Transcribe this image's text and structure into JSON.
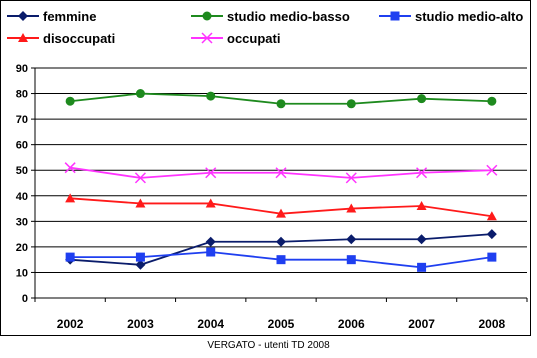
{
  "caption": "VERGATO - utenti TD 2008",
  "chart_data": {
    "type": "line",
    "categories": [
      "2002",
      "2003",
      "2004",
      "2005",
      "2006",
      "2007",
      "2008"
    ],
    "ylim": [
      0,
      90
    ],
    "yticks": [
      0,
      10,
      20,
      30,
      40,
      50,
      60,
      70,
      80,
      90
    ],
    "grid": true,
    "legend": "top",
    "series": [
      {
        "name": "femmine",
        "values": [
          15,
          13,
          22,
          22,
          23,
          23,
          25
        ],
        "color": "#0a1c6b",
        "marker": "diamond"
      },
      {
        "name": "studio medio-basso",
        "values": [
          77,
          80,
          79,
          76,
          76,
          78,
          77
        ],
        "color": "#1e8a1e",
        "marker": "circle"
      },
      {
        "name": "studio medio-alto",
        "values": [
          16,
          16,
          18,
          15,
          15,
          12,
          16
        ],
        "color": "#1f3ff0",
        "marker": "square"
      },
      {
        "name": "disoccupati",
        "values": [
          39,
          37,
          37,
          33,
          35,
          36,
          32
        ],
        "color": "#ff1a1a",
        "marker": "triangle"
      },
      {
        "name": "occupati",
        "values": [
          51,
          47,
          49,
          49,
          47,
          49,
          50
        ],
        "color": "#ff33ff",
        "marker": "x"
      }
    ]
  }
}
